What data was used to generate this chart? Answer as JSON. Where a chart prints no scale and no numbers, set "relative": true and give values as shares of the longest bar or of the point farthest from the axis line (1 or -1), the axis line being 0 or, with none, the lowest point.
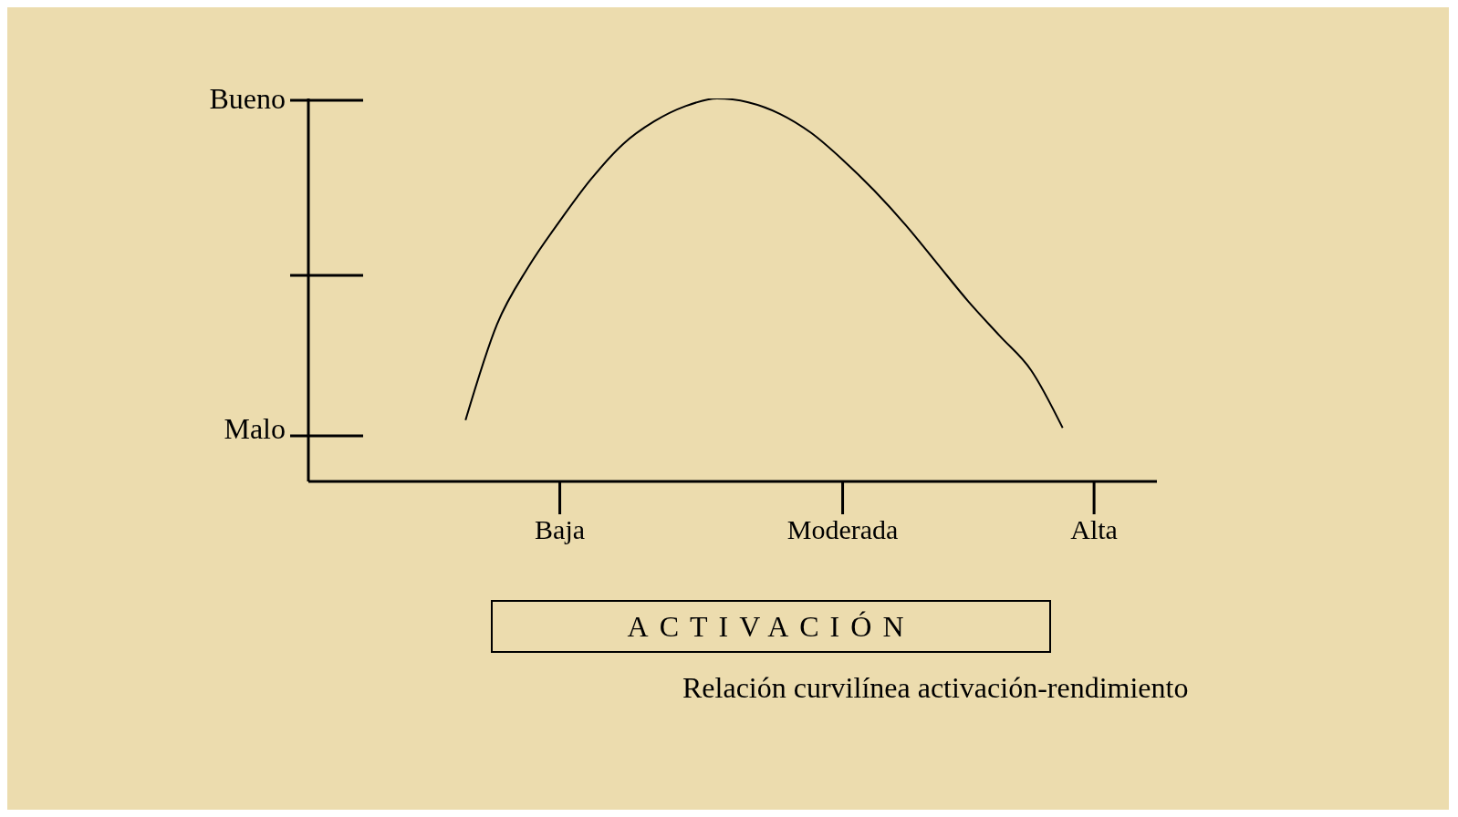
{
  "chart_data": {
    "type": "line",
    "relative": true,
    "xlabel": "ACTIVACIÓN",
    "annotations": [
      "Bueno",
      "Malo",
      "Relación curvilínea activación-rendimiento"
    ],
    "categories": [
      null,
      null,
      null,
      null,
      null,
      null,
      null,
      null,
      "Baja",
      null,
      null,
      null,
      null,
      null,
      null,
      null,
      null,
      "Moderada",
      null,
      null,
      null,
      null,
      null,
      null,
      null,
      "Alta",
      null,
      null
    ],
    "values": [
      null,
      null,
      null,
      null,
      null,
      0.16,
      0.41,
      0.56,
      0.68,
      0.79,
      0.88,
      0.94,
      0.98,
      1.0,
      0.99,
      0.96,
      0.91,
      0.84,
      0.76,
      0.67,
      0.57,
      0.47,
      0.38,
      0.29,
      0.14,
      null,
      null,
      null
    ],
    "color": "#000000"
  }
}
